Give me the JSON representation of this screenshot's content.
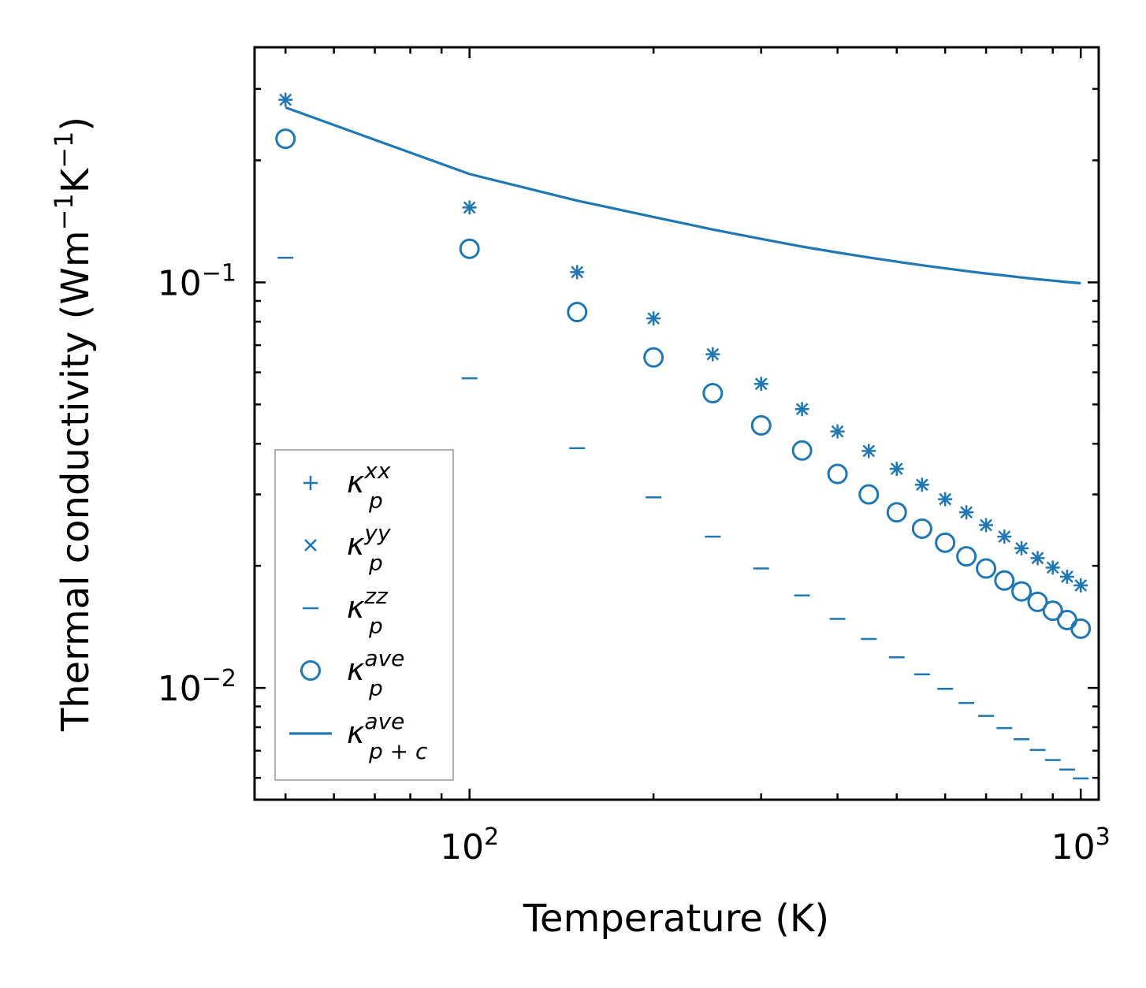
{
  "chart_data": {
    "type": "scatter",
    "xscale": "log",
    "yscale": "log",
    "xlabel": "Temperature (K)",
    "ylabel": {
      "main": "Thermal conductivity (Wm",
      "sup1": "−1",
      "mid": "K",
      "sup2": "−1",
      "end": ")"
    },
    "xlim": [
      44.5,
      1070
    ],
    "ylim": [
      0.0053,
      0.38
    ],
    "color": "#1f77b4",
    "x_ticks": [
      {
        "value": 100,
        "base": "10",
        "exp": "2"
      },
      {
        "value": 1000,
        "base": "10",
        "exp": "3"
      }
    ],
    "y_ticks": [
      {
        "value": 0.01,
        "base": "10",
        "exp": "−2"
      },
      {
        "value": 0.1,
        "base": "10",
        "exp": "−1"
      }
    ],
    "x": [
      50,
      100,
      150,
      200,
      250,
      300,
      350,
      400,
      450,
      500,
      550,
      600,
      650,
      700,
      750,
      800,
      850,
      900,
      950,
      1000
    ],
    "series": [
      {
        "name": "kxx",
        "marker": "plus",
        "values": [
          0.282,
          0.153,
          0.106,
          0.0815,
          0.0665,
          0.0562,
          0.0487,
          0.0429,
          0.0384,
          0.0347,
          0.0317,
          0.0292,
          0.0271,
          0.0252,
          0.0236,
          0.0221,
          0.0209,
          0.0198,
          0.0188,
          0.0179
        ]
      },
      {
        "name": "kyy",
        "marker": "x",
        "values": [
          0.282,
          0.153,
          0.106,
          0.0815,
          0.0665,
          0.0562,
          0.0487,
          0.0429,
          0.0384,
          0.0347,
          0.0317,
          0.0292,
          0.0271,
          0.0252,
          0.0236,
          0.0221,
          0.0209,
          0.0198,
          0.0188,
          0.0179
        ]
      },
      {
        "name": "kzz",
        "marker": "hline",
        "values": [
          0.115,
          0.058,
          0.039,
          0.0295,
          0.0236,
          0.0197,
          0.0169,
          0.0148,
          0.0132,
          0.0119,
          0.0108,
          0.00995,
          0.00918,
          0.00853,
          0.00796,
          0.00747,
          0.00703,
          0.00664,
          0.00629,
          0.00598
        ]
      },
      {
        "name": "kave",
        "marker": "circle",
        "values": [
          0.226,
          0.121,
          0.0845,
          0.0653,
          0.0533,
          0.0444,
          0.0385,
          0.0337,
          0.03,
          0.0271,
          0.0247,
          0.0228,
          0.0211,
          0.0197,
          0.0184,
          0.0173,
          0.0163,
          0.0155,
          0.0147,
          0.014
        ]
      },
      {
        "name": "kpc",
        "marker": "line",
        "values": [
          0.27,
          0.185,
          0.159,
          0.145,
          0.135,
          0.128,
          0.1225,
          0.1185,
          0.1152,
          0.1125,
          0.1102,
          0.1083,
          0.1066,
          0.1052,
          0.104,
          0.1028,
          0.1018,
          0.101,
          0.1002,
          0.0995
        ]
      }
    ],
    "legend": {
      "position": "lower-left",
      "entries": [
        {
          "marker": "plus",
          "base": "κ",
          "sub": "p",
          "sup": "xx"
        },
        {
          "marker": "x",
          "base": "κ",
          "sub": "p",
          "sup": "yy"
        },
        {
          "marker": "hline",
          "base": "κ",
          "sub": "p",
          "sup": "zz"
        },
        {
          "marker": "circle",
          "base": "κ",
          "sub": "p",
          "sup": "ave"
        },
        {
          "marker": "line",
          "base": "κ",
          "sub": "p + c",
          "sup": "ave"
        }
      ]
    }
  }
}
